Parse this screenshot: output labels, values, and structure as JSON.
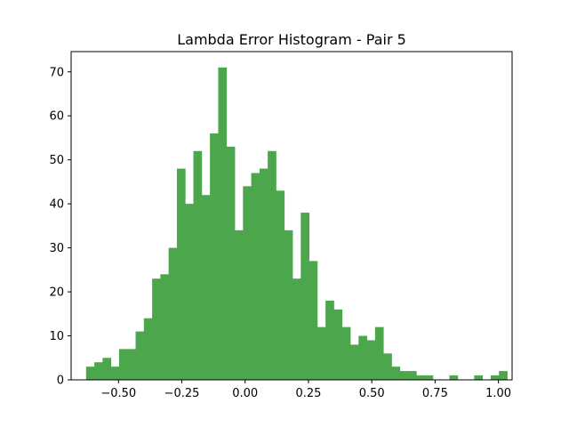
{
  "chart_data": {
    "type": "bar",
    "title": "Lambda Error Histogram - Pair 5",
    "xlabel": "",
    "ylabel": "",
    "bar_color": "#4ca64c",
    "xlim": [
      -0.687,
      1.054
    ],
    "ylim": [
      0,
      74.6
    ],
    "grid": false,
    "legend": "none",
    "x_ticks": [
      -0.5,
      -0.25,
      0.0,
      0.25,
      0.5,
      0.75,
      1.0
    ],
    "x_tick_labels": [
      "−0.50",
      "−0.25",
      "0.00",
      "0.25",
      "0.50",
      "0.75",
      "1.00"
    ],
    "y_ticks": [
      0,
      10,
      20,
      30,
      40,
      50,
      60,
      70
    ],
    "y_tick_labels": [
      "0",
      "10",
      "20",
      "30",
      "40",
      "50",
      "60",
      "70"
    ],
    "bins": {
      "start": -0.628,
      "width": 0.0326,
      "counts": [
        3,
        4,
        5,
        3,
        7,
        7,
        11,
        14,
        23,
        24,
        30,
        48,
        40,
        52,
        42,
        56,
        71,
        53,
        34,
        44,
        47,
        48,
        52,
        43,
        34,
        23,
        38,
        27,
        12,
        18,
        16,
        12,
        8,
        10,
        9,
        12,
        6,
        3,
        2,
        2,
        1,
        1,
        0,
        0,
        1,
        0,
        0,
        1,
        0,
        1,
        2
      ]
    }
  }
}
